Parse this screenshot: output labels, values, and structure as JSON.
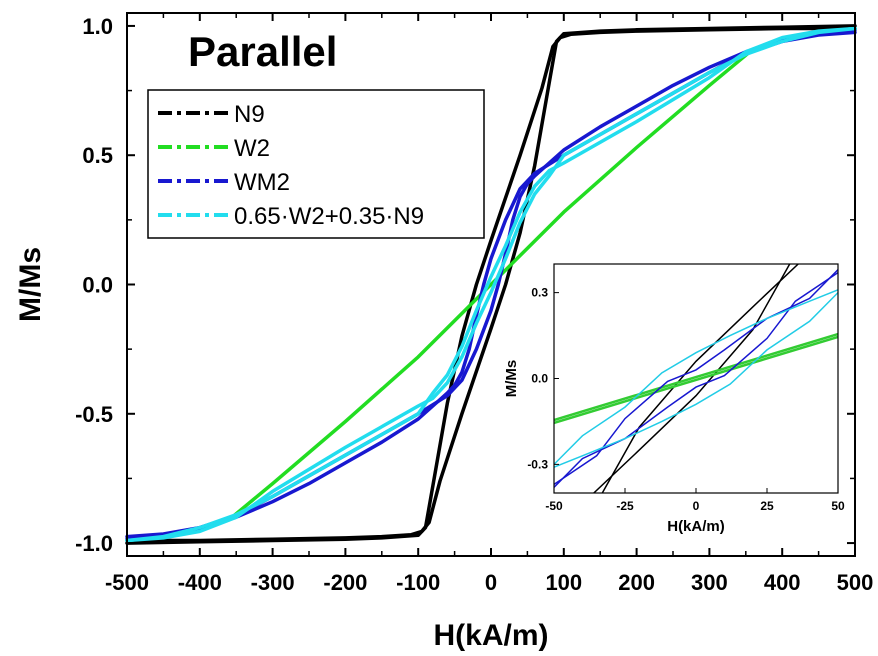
{
  "chart_data": [
    {
      "type": "line",
      "role": "main",
      "annotation": "Parallel",
      "xlabel": "H(kA/m)",
      "ylabel": "M/Ms",
      "xlim": [
        -500,
        500
      ],
      "ylim": [
        -1.05,
        1.05
      ],
      "xticks": [
        -500,
        -400,
        -300,
        -200,
        -100,
        0,
        100,
        200,
        300,
        400,
        500
      ],
      "xtick_labels": [
        "-500",
        "-400",
        "-300",
        "-200",
        "-100",
        "0",
        "100",
        "200",
        "300",
        "400",
        "500"
      ],
      "yticks": [
        -1.0,
        -0.5,
        0.0,
        0.5,
        1.0
      ],
      "ytick_labels": [
        "-1.0",
        "-0.5",
        "0.0",
        "0.5",
        "1.0"
      ],
      "grid": false,
      "legend_position": "top-left",
      "series": [
        {
          "name": "N9",
          "color": "#000000",
          "branches": [
            {
              "x": [
                -500,
                -400,
                -300,
                -200,
                -150,
                -110,
                -95,
                -85,
                -70,
                -40,
                0,
                20,
                40,
                60,
                80,
                90,
                100,
                150,
                200,
                300,
                400,
                500
              ],
              "y": [
                -0.99,
                -0.99,
                -0.985,
                -0.98,
                -0.975,
                -0.968,
                -0.955,
                -0.92,
                -0.76,
                -0.5,
                -0.17,
                0.0,
                0.2,
                0.46,
                0.78,
                0.94,
                0.97,
                0.98,
                0.985,
                0.99,
                0.995,
                1.0
              ]
            },
            {
              "x": [
                500,
                400,
                300,
                200,
                150,
                110,
                95,
                85,
                70,
                40,
                0,
                -20,
                -40,
                -60,
                -80,
                -90,
                -100,
                -150,
                -200,
                -300,
                -400,
                -500
              ],
              "y": [
                0.99,
                0.99,
                0.985,
                0.98,
                0.975,
                0.968,
                0.955,
                0.92,
                0.76,
                0.5,
                0.17,
                0.0,
                -0.2,
                -0.46,
                -0.78,
                -0.94,
                -0.97,
                -0.98,
                -0.985,
                -0.99,
                -0.995,
                -1.0
              ]
            }
          ]
        },
        {
          "name": "W2",
          "color": "#22dd22",
          "branches": [
            {
              "x": [
                -500,
                -450,
                -400,
                -360,
                -300,
                -200,
                -100,
                0,
                100,
                200,
                300,
                360,
                400,
                450,
                500
              ],
              "y": [
                -0.99,
                -0.975,
                -0.95,
                -0.91,
                -0.77,
                -0.53,
                -0.28,
                0.0,
                0.28,
                0.53,
                0.77,
                0.91,
                0.95,
                0.975,
                0.99
              ]
            }
          ]
        },
        {
          "name": "WM2",
          "color": "#1818d0",
          "branches": [
            {
              "x": [
                -500,
                -450,
                -400,
                -350,
                -300,
                -250,
                -200,
                -150,
                -100,
                -60,
                -40,
                -20,
                0,
                10,
                20,
                30,
                40,
                50,
                60,
                80,
                100,
                150,
                200,
                250,
                300,
                350,
                400,
                450,
                500
              ],
              "y": [
                -0.975,
                -0.965,
                -0.94,
                -0.895,
                -0.82,
                -0.74,
                -0.66,
                -0.58,
                -0.5,
                -0.43,
                -0.37,
                -0.25,
                -0.1,
                0.0,
                0.12,
                0.25,
                0.34,
                0.39,
                0.42,
                0.47,
                0.52,
                0.61,
                0.69,
                0.77,
                0.84,
                0.9,
                0.945,
                0.97,
                0.985
              ]
            },
            {
              "x": [
                500,
                450,
                400,
                350,
                300,
                250,
                200,
                150,
                100,
                60,
                40,
                20,
                0,
                -10,
                -20,
                -30,
                -40,
                -50,
                -60,
                -80,
                -100,
                -150,
                -200,
                -250,
                -300,
                -350,
                -400,
                -450,
                -500
              ],
              "y": [
                0.975,
                0.965,
                0.94,
                0.895,
                0.82,
                0.74,
                0.66,
                0.58,
                0.5,
                0.43,
                0.37,
                0.25,
                0.1,
                0.0,
                -0.12,
                -0.25,
                -0.34,
                -0.39,
                -0.42,
                -0.47,
                -0.52,
                -0.61,
                -0.69,
                -0.77,
                -0.84,
                -0.9,
                -0.945,
                -0.97,
                -0.985
              ]
            }
          ]
        },
        {
          "name": "0.65·W2+0.35·N9",
          "color": "#22ddee",
          "branches": [
            {
              "x": [
                -500,
                -450,
                -400,
                -350,
                -300,
                -200,
                -100,
                -80,
                -60,
                -40,
                -20,
                0,
                20,
                40,
                60,
                80,
                100,
                200,
                300,
                350,
                400,
                450,
                500
              ],
              "y": [
                -0.99,
                -0.98,
                -0.955,
                -0.9,
                -0.8,
                -0.63,
                -0.47,
                -0.44,
                -0.38,
                -0.28,
                -0.15,
                -0.03,
                0.1,
                0.24,
                0.35,
                0.42,
                0.5,
                0.66,
                0.82,
                0.89,
                0.94,
                0.975,
                0.99
              ]
            },
            {
              "x": [
                500,
                450,
                400,
                350,
                300,
                200,
                100,
                80,
                60,
                40,
                20,
                0,
                -20,
                -40,
                -60,
                -80,
                -100,
                -200,
                -300,
                -350,
                -400,
                -450,
                -500
              ],
              "y": [
                0.99,
                0.98,
                0.955,
                0.9,
                0.8,
                0.63,
                0.47,
                0.44,
                0.38,
                0.28,
                0.15,
                0.03,
                -0.1,
                -0.24,
                -0.35,
                -0.42,
                -0.5,
                -0.66,
                -0.82,
                -0.89,
                -0.94,
                -0.975,
                -0.99
              ]
            }
          ]
        }
      ]
    },
    {
      "type": "line",
      "role": "inset",
      "xlabel": "H(kA/m)",
      "ylabel": "M/Ms",
      "xlim": [
        -50,
        50
      ],
      "ylim": [
        -0.4,
        0.4
      ],
      "xticks": [
        -50,
        -25,
        0,
        25,
        50
      ],
      "xtick_labels": [
        "-50",
        "-25",
        "0",
        "25",
        "50"
      ],
      "yticks": [
        -0.3,
        0.0,
        0.3
      ],
      "ytick_labels": [
        "-0.3",
        "0.0",
        "0.3"
      ],
      "grid": false,
      "series": [
        {
          "name": "N9",
          "color": "#000000",
          "branches": [
            {
              "x": [
                -36,
                -20,
                0,
                20,
                33
              ],
              "y": [
                -0.4,
                -0.25,
                -0.06,
                0.17,
                0.4
              ]
            },
            {
              "x": [
                36,
                20,
                0,
                -20,
                -33
              ],
              "y": [
                0.4,
                0.25,
                0.06,
                -0.17,
                -0.4
              ]
            }
          ]
        },
        {
          "name": "W2",
          "color": "#33cc33",
          "branches": [
            {
              "x": [
                -50,
                0,
                50
              ],
              "y": [
                -0.155,
                -0.005,
                0.145
              ]
            },
            {
              "x": [
                50,
                0,
                -50
              ],
              "y": [
                0.155,
                0.005,
                -0.145
              ]
            }
          ]
        },
        {
          "name": "WM2",
          "color": "#1818d0",
          "branches": [
            {
              "x": [
                -50,
                -35,
                -25,
                -10,
                0,
                10,
                25,
                40,
                50
              ],
              "y": [
                -0.37,
                -0.27,
                -0.14,
                -0.01,
                0.03,
                0.1,
                0.21,
                0.28,
                0.38
              ]
            },
            {
              "x": [
                50,
                35,
                25,
                10,
                0,
                -10,
                -25,
                -40,
                -50
              ],
              "y": [
                0.37,
                0.27,
                0.14,
                0.01,
                -0.03,
                -0.1,
                -0.21,
                -0.28,
                -0.38
              ]
            }
          ]
        },
        {
          "name": "0.65·W2+0.35·N9",
          "color": "#22cce6",
          "branches": [
            {
              "x": [
                -50,
                -40,
                -25,
                -12,
                0,
                12,
                25,
                40,
                50
              ],
              "y": [
                -0.3,
                -0.2,
                -0.1,
                0.02,
                0.09,
                0.15,
                0.21,
                0.27,
                0.31
              ]
            },
            {
              "x": [
                50,
                40,
                25,
                12,
                0,
                -12,
                -25,
                -40,
                -50
              ],
              "y": [
                0.3,
                0.2,
                0.1,
                -0.02,
                -0.09,
                -0.15,
                -0.21,
                -0.27,
                -0.31
              ]
            }
          ]
        }
      ]
    }
  ]
}
